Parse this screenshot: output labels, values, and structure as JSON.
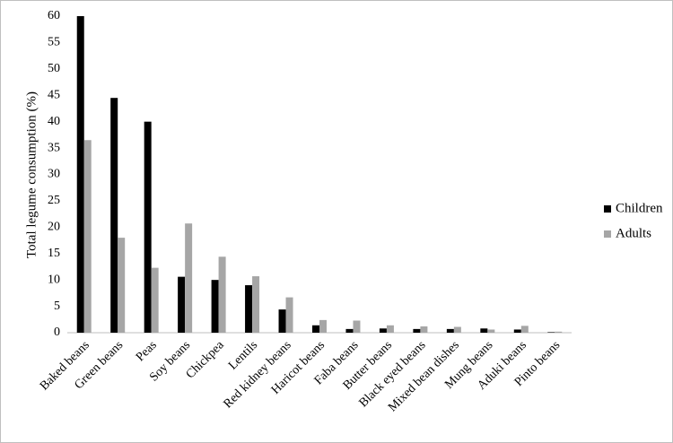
{
  "chart_data": {
    "type": "bar",
    "y_label": "Total legume consumption (%)",
    "categories": [
      "Baked beans",
      "Green beans",
      "Peas",
      "Soy beans",
      "Chickpea",
      "Lentils",
      "Red kidney beans",
      "Haricot beans",
      "Faba beans",
      "Butter beans",
      "Black eyed beans",
      "Mixed bean dishes",
      "Mung beans",
      "Aduki beans",
      "Pinto beans"
    ],
    "series": [
      {
        "name": "Children",
        "color": "#000000",
        "values": [
          60,
          44.5,
          40,
          10.6,
          10,
          9,
          4.4,
          1.4,
          0.7,
          0.8,
          0.7,
          0.7,
          0.8,
          0.6,
          0.1
        ]
      },
      {
        "name": "Adults",
        "color": "#a6a6a6",
        "values": [
          36.5,
          18,
          12.3,
          20.7,
          14.4,
          10.7,
          6.7,
          2.4,
          2.3,
          1.4,
          1.2,
          1.1,
          0.6,
          1.3,
          0.2
        ]
      }
    ],
    "ylim": [
      0,
      60
    ],
    "yticks": [
      0,
      5,
      10,
      15,
      20,
      25,
      30,
      35,
      40,
      45,
      50,
      55,
      60
    ],
    "grid": false,
    "legend": "right"
  }
}
